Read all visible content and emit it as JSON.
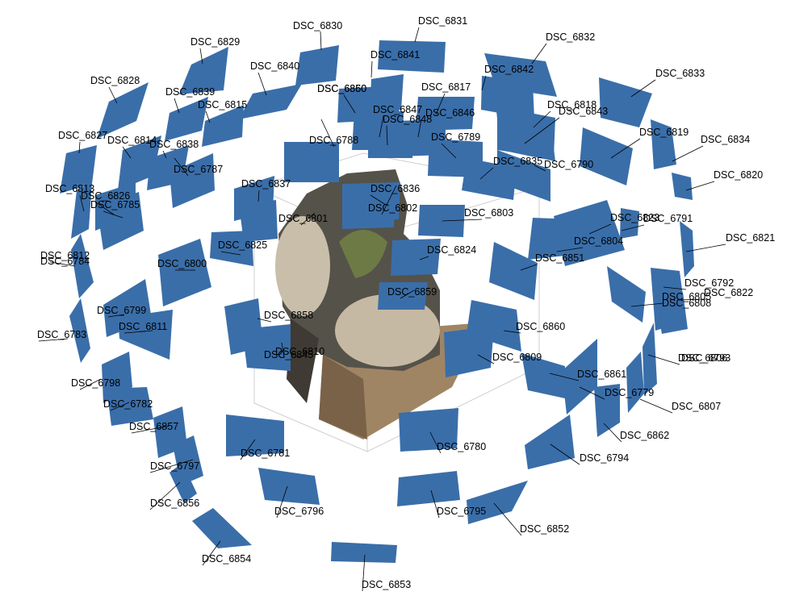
{
  "scene": {
    "title": "",
    "camera_color": "#3a6ea9",
    "cameras": [
      {
        "name": "DSC_6830"
      },
      {
        "name": "DSC_6831"
      },
      {
        "name": "DSC_6829"
      },
      {
        "name": "DSC_6832"
      },
      {
        "name": "DSC_6841"
      },
      {
        "name": "DSC_6840"
      },
      {
        "name": "DSC_6842"
      },
      {
        "name": "DSC_6828"
      },
      {
        "name": "DSC_6850"
      },
      {
        "name": "DSC_6860"
      },
      {
        "name": "DSC_6817"
      },
      {
        "name": "DSC_6839"
      },
      {
        "name": "DSC_6833"
      },
      {
        "name": "DSC_6818"
      },
      {
        "name": "DSC_6815"
      },
      {
        "name": "DSC_6847"
      },
      {
        "name": "DSC_6846"
      },
      {
        "name": "DSC_6843"
      },
      {
        "name": "DSC_6848"
      },
      {
        "name": "DSC_6819"
      },
      {
        "name": "DSC_6827"
      },
      {
        "name": "DSC_6788"
      },
      {
        "name": "DSC_6789"
      },
      {
        "name": "DSC_6814"
      },
      {
        "name": "DSC_6834"
      },
      {
        "name": "DSC_6838"
      },
      {
        "name": "DSC_6835"
      },
      {
        "name": "DSC_6790"
      },
      {
        "name": "DSC_6787"
      },
      {
        "name": "DSC_6820"
      },
      {
        "name": "DSC_6837"
      },
      {
        "name": "DSC_6813"
      },
      {
        "name": "DSC_6836"
      },
      {
        "name": "DSC_6826"
      },
      {
        "name": "DSC_6785"
      },
      {
        "name": "DSC_6802"
      },
      {
        "name": "DSC_6803"
      },
      {
        "name": "DSC_6801"
      },
      {
        "name": "DSC_6823"
      },
      {
        "name": "DSC_6791"
      },
      {
        "name": "DSC_6821"
      },
      {
        "name": "DSC_6804"
      },
      {
        "name": "DSC_6825"
      },
      {
        "name": "DSC_6824"
      },
      {
        "name": "DSC_6812"
      },
      {
        "name": "DSC_6784"
      },
      {
        "name": "DSC_6851"
      },
      {
        "name": "DSC_6800"
      },
      {
        "name": "DSC_6792"
      },
      {
        "name": "DSC_6822"
      },
      {
        "name": "DSC_6859"
      },
      {
        "name": "DSC_6805"
      },
      {
        "name": "DSC_6808"
      },
      {
        "name": "DSC_6799"
      },
      {
        "name": "DSC_6858"
      },
      {
        "name": "DSC_6811"
      },
      {
        "name": "DSC_6860"
      },
      {
        "name": "DSC_6783"
      },
      {
        "name": "DSC_6810"
      },
      {
        "name": "DSC_6845"
      },
      {
        "name": "DSC_6809"
      },
      {
        "name": "DSC_6806"
      },
      {
        "name": "DSC_6793"
      },
      {
        "name": "DSC_6861"
      },
      {
        "name": "DSC_6798"
      },
      {
        "name": "DSC_6779"
      },
      {
        "name": "DSC_6782"
      },
      {
        "name": "DSC_6807"
      },
      {
        "name": "DSC_6857"
      },
      {
        "name": "DSC_6862"
      },
      {
        "name": "DSC_6780"
      },
      {
        "name": "DSC_6781"
      },
      {
        "name": "DSC_6794"
      },
      {
        "name": "DSC_6797"
      },
      {
        "name": "DSC_6856"
      },
      {
        "name": "DSC_6796"
      },
      {
        "name": "DSC_6795"
      },
      {
        "name": "DSC_6852"
      },
      {
        "name": "DSC_6854"
      },
      {
        "name": "DSC_6853"
      }
    ]
  }
}
